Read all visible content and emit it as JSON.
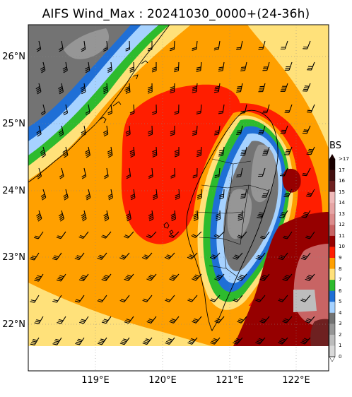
{
  "title": "AIFS Wind_Max : 20241030_0000+(24-36h)",
  "axes": {
    "lat_labels": [
      "26°N",
      "25°N",
      "24°N",
      "23°N",
      "22°N"
    ],
    "lon_labels": [
      "119°E",
      "120°E",
      "121°E",
      "122°E"
    ]
  },
  "colorbar": {
    "unit": "BS",
    "levels": [
      ">17",
      "17",
      "16",
      "15",
      "14",
      "13",
      "12",
      "11",
      "10",
      "9",
      "8",
      "7",
      "6",
      "5",
      "4",
      "3",
      "2",
      "1",
      "0"
    ],
    "colors": {
      "c0": "#ffffff",
      "c1": "#d9d9d9",
      "c2": "#bdbdbd",
      "c3": "#969696",
      "c4": "#737373",
      "c5": "#a6d2ff",
      "c6": "#1f6fd6",
      "c7": "#2dbb2d",
      "c8": "#ffe17a",
      "c9": "#ffa000",
      "c10": "#ff1e00",
      "c11": "#960000",
      "c12": "#c86464",
      "c13": "#dc8c8c",
      "c14": "#e6a5a5",
      "c15": "#f0b9b9",
      "c16": "#6e2020",
      "c17": "#441010",
      "c18": "#1a0000"
    }
  },
  "map_style": {
    "no_data": "#ffffff",
    "coastline": "#000000",
    "barb": "#000000"
  }
}
